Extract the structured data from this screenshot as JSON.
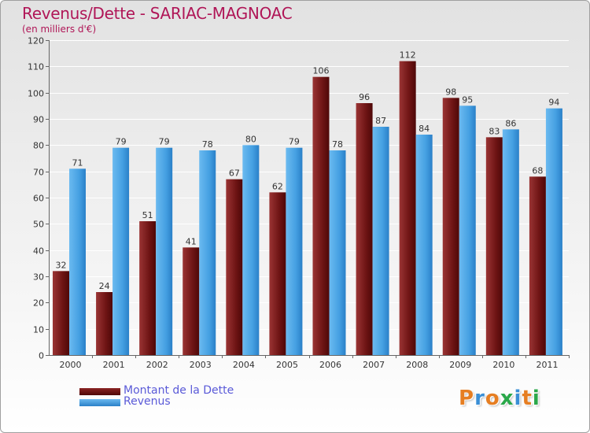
{
  "title": "Revenus/Dette - SARIAC-MAGNOAC",
  "subtitle": "(en milliers d'€)",
  "legend": {
    "debt_label": "Montant de la Dette",
    "revenue_label": "Revenus"
  },
  "logo_text": "Proxiti",
  "colors": {
    "debt": "#7a1a1a",
    "revenue": "#4aa3e3",
    "title": "#b01657",
    "legend_text": "#5a5ad8"
  },
  "chart_data": {
    "type": "bar",
    "title": "Revenus/Dette - SARIAC-MAGNOAC",
    "ylabel": "(en milliers d'€)",
    "xlabel": "",
    "ylim": [
      0,
      120
    ],
    "yticks": [
      0,
      10,
      20,
      30,
      40,
      50,
      60,
      70,
      80,
      90,
      100,
      110,
      120
    ],
    "grid": true,
    "legend_position": "bottom-left",
    "categories": [
      "2000",
      "2001",
      "2002",
      "2003",
      "2004",
      "2005",
      "2006",
      "2007",
      "2008",
      "2009",
      "2010",
      "2011"
    ],
    "series": [
      {
        "name": "Montant de la Dette",
        "color": "#7a1a1a",
        "values": [
          32,
          24,
          51,
          41,
          67,
          62,
          106,
          96,
          112,
          98,
          83,
          68
        ]
      },
      {
        "name": "Revenus",
        "color": "#4aa3e3",
        "values": [
          71,
          79,
          79,
          78,
          80,
          79,
          78,
          87,
          84,
          95,
          86,
          94
        ]
      }
    ]
  }
}
